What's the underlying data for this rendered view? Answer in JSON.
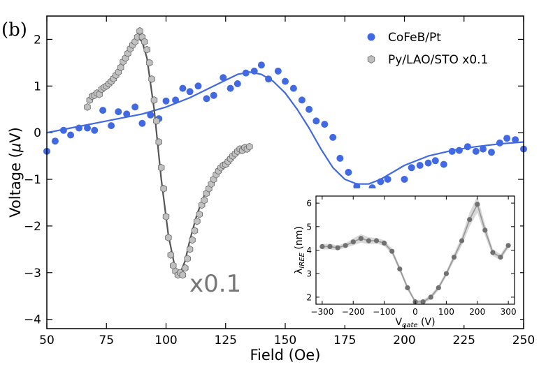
{
  "panel_label": "(b)",
  "chart_data": [
    {
      "type": "scatter",
      "title": "",
      "xlabel": "Field (Oe)",
      "ylabel": "Voltage (μV)",
      "ylabel_parts": {
        "pre": "Voltage (",
        "greek": "μ",
        "post": "V)"
      },
      "xlim": [
        50,
        250
      ],
      "ylim": [
        -4.2,
        2.5
      ],
      "xticks": [
        50,
        75,
        100,
        125,
        150,
        175,
        200,
        225,
        250
      ],
      "yticks": [
        -4,
        -3,
        -2,
        -1,
        0,
        1,
        2
      ],
      "ytick_labels": [
        "−4",
        "−3",
        "−2",
        "−1",
        "0",
        "1",
        "2"
      ],
      "grid": false,
      "legend_position": "top-right",
      "annotation": "x0.1",
      "series": [
        {
          "name": "CoFeB/Pt",
          "marker": "circle",
          "color": "#4169e1",
          "points": [
            [
              50,
              -0.4
            ],
            [
              53.5,
              -0.18
            ],
            [
              57,
              0.05
            ],
            [
              60,
              -0.05
            ],
            [
              63.5,
              0.1
            ],
            [
              67,
              0.1
            ],
            [
              70,
              0.05
            ],
            [
              73.5,
              0.48
            ],
            [
              77,
              0.15
            ],
            [
              80,
              0.45
            ],
            [
              83.5,
              0.4
            ],
            [
              87,
              0.55
            ],
            [
              90,
              0.2
            ],
            [
              93.5,
              0.38
            ],
            [
              97,
              0.3
            ],
            [
              100,
              0.68
            ],
            [
              104,
              0.7
            ],
            [
              107,
              0.95
            ],
            [
              110,
              0.88
            ],
            [
              113.5,
              1.0
            ],
            [
              117,
              0.73
            ],
            [
              120,
              0.8
            ],
            [
              124,
              1.18
            ],
            [
              127,
              0.95
            ],
            [
              130,
              1.05
            ],
            [
              133.5,
              1.28
            ],
            [
              137,
              1.32
            ],
            [
              140,
              1.45
            ],
            [
              143,
              1.15
            ],
            [
              147,
              1.32
            ],
            [
              150,
              1.1
            ],
            [
              153.5,
              0.95
            ],
            [
              157,
              0.7
            ],
            [
              160,
              0.5
            ],
            [
              163,
              0.25
            ],
            [
              166.5,
              0.18
            ],
            [
              170,
              -0.1
            ],
            [
              173,
              -0.55
            ],
            [
              176.5,
              -0.85
            ],
            [
              180,
              -1.15
            ],
            [
              183,
              -1.3
            ],
            [
              186.5,
              -1.18
            ],
            [
              190,
              -1.05
            ],
            [
              193,
              -1.0
            ],
            [
              196.5,
              -1.38
            ],
            [
              200,
              -1.0
            ],
            [
              203,
              -0.75
            ],
            [
              206.5,
              -0.7
            ],
            [
              210,
              -0.65
            ],
            [
              213,
              -0.6
            ],
            [
              216.5,
              -0.68
            ],
            [
              220,
              -0.4
            ],
            [
              223,
              -0.38
            ],
            [
              226.5,
              -0.3
            ],
            [
              230,
              -0.4
            ],
            [
              233,
              -0.35
            ],
            [
              236.5,
              -0.42
            ],
            [
              240,
              -0.22
            ],
            [
              243,
              -0.12
            ],
            [
              246.5,
              -0.15
            ],
            [
              250,
              -0.35
            ]
          ],
          "fit": [
            [
              50,
              0.0
            ],
            [
              60,
              0.1
            ],
            [
              70,
              0.2
            ],
            [
              80,
              0.3
            ],
            [
              90,
              0.4
            ],
            [
              100,
              0.55
            ],
            [
              110,
              0.75
            ],
            [
              120,
              1.0
            ],
            [
              130,
              1.25
            ],
            [
              135,
              1.3
            ],
            [
              140,
              1.25
            ],
            [
              145,
              1.1
            ],
            [
              150,
              0.85
            ],
            [
              155,
              0.5
            ],
            [
              160,
              0.1
            ],
            [
              165,
              -0.35
            ],
            [
              170,
              -0.75
            ],
            [
              175,
              -1.0
            ],
            [
              180,
              -1.1
            ],
            [
              185,
              -1.1
            ],
            [
              190,
              -1.0
            ],
            [
              195,
              -0.85
            ],
            [
              200,
              -0.7
            ],
            [
              210,
              -0.5
            ],
            [
              220,
              -0.38
            ],
            [
              230,
              -0.3
            ],
            [
              240,
              -0.24
            ],
            [
              250,
              -0.2
            ]
          ]
        },
        {
          "name": "Py/LAO/STO x0.1",
          "marker": "hexagon",
          "color": "#c0c0c0",
          "points": [
            [
              67,
              0.55
            ],
            [
              68,
              0.7
            ],
            [
              69,
              0.78
            ],
            [
              70,
              0.8
            ],
            [
              71,
              0.85
            ],
            [
              72,
              0.82
            ],
            [
              73,
              0.93
            ],
            [
              74,
              0.97
            ],
            [
              75,
              1.0
            ],
            [
              76,
              1.05
            ],
            [
              77,
              1.1
            ],
            [
              78,
              1.16
            ],
            [
              79,
              1.23
            ],
            [
              80,
              1.3
            ],
            [
              81,
              1.4
            ],
            [
              82,
              1.52
            ],
            [
              83,
              1.6
            ],
            [
              84,
              1.7
            ],
            [
              85,
              1.8
            ],
            [
              86,
              1.88
            ],
            [
              87,
              1.95
            ],
            [
              88,
              2.05
            ],
            [
              89,
              2.18
            ],
            [
              90,
              2.05
            ],
            [
              91,
              1.95
            ],
            [
              92,
              1.78
            ],
            [
              93,
              1.5
            ],
            [
              94,
              1.15
            ],
            [
              95,
              0.7
            ],
            [
              96,
              0.25
            ],
            [
              97,
              -0.2
            ],
            [
              98,
              -0.75
            ],
            [
              99,
              -1.2
            ],
            [
              100,
              -1.8
            ],
            [
              101,
              -2.25
            ],
            [
              102,
              -2.62
            ],
            [
              103,
              -2.85
            ],
            [
              104,
              -2.97
            ],
            [
              105,
              -3.05
            ],
            [
              106,
              -3.0
            ],
            [
              107,
              -3.05
            ],
            [
              108,
              -2.9
            ],
            [
              109,
              -2.7
            ],
            [
              110,
              -2.5
            ],
            [
              111,
              -2.3
            ],
            [
              112,
              -2.1
            ],
            [
              113,
              -1.9
            ],
            [
              114,
              -1.75
            ],
            [
              115,
              -1.55
            ],
            [
              116,
              -1.45
            ],
            [
              117,
              -1.3
            ],
            [
              118,
              -1.2
            ],
            [
              119,
              -1.1
            ],
            [
              120,
              -1.0
            ],
            [
              121,
              -0.9
            ],
            [
              122,
              -0.82
            ],
            [
              123,
              -0.75
            ],
            [
              124,
              -0.7
            ],
            [
              125,
              -0.68
            ],
            [
              126,
              -0.62
            ],
            [
              127,
              -0.56
            ],
            [
              128,
              -0.5
            ],
            [
              129,
              -0.45
            ],
            [
              130,
              -0.4
            ],
            [
              131,
              -0.35
            ],
            [
              132,
              -0.38
            ],
            [
              133,
              -0.32
            ],
            [
              134,
              -0.35
            ],
            [
              135,
              -0.3
            ]
          ],
          "fit": [
            [
              67,
              0.65
            ],
            [
              70,
              0.8
            ],
            [
              75,
              1.0
            ],
            [
              80,
              1.35
            ],
            [
              85,
              1.85
            ],
            [
              88,
              2.05
            ],
            [
              90,
              1.95
            ],
            [
              92,
              1.6
            ],
            [
              95,
              0.5
            ],
            [
              98,
              -1.0
            ],
            [
              101,
              -2.2
            ],
            [
              104,
              -2.95
            ],
            [
              106,
              -3.0
            ],
            [
              108,
              -2.75
            ],
            [
              110,
              -2.3
            ],
            [
              113,
              -1.75
            ],
            [
              116,
              -1.35
            ],
            [
              120,
              -0.95
            ],
            [
              125,
              -0.65
            ],
            [
              130,
              -0.45
            ],
            [
              135,
              -0.32
            ]
          ]
        }
      ]
    },
    {
      "type": "line",
      "title": "",
      "xlabel_parts": {
        "pre": "V",
        "sub": "gate",
        "post": " (V)"
      },
      "ylabel_parts": {
        "pre": "λ",
        "sub": "IREE",
        "post": " (nm)"
      },
      "xlim": [
        -320,
        320
      ],
      "ylim": [
        1.7,
        6.3
      ],
      "xticks": [
        -300,
        -200,
        -100,
        0,
        100,
        200,
        300
      ],
      "xtick_labels": [
        "−300",
        "−200",
        "−100",
        "0",
        "100",
        "200",
        "300"
      ],
      "yticks": [
        2,
        3,
        4,
        5,
        6
      ],
      "series": [
        {
          "name": "λ_IREE",
          "color": "#707070",
          "points": [
            [
              -300,
              4.15
            ],
            [
              -275,
              4.15
            ],
            [
              -250,
              4.1
            ],
            [
              -225,
              4.2
            ],
            [
              -200,
              4.35
            ],
            [
              -175,
              4.5
            ],
            [
              -150,
              4.4
            ],
            [
              -125,
              4.4
            ],
            [
              -100,
              4.3
            ],
            [
              -75,
              3.95
            ],
            [
              -50,
              3.2
            ],
            [
              -25,
              2.4
            ],
            [
              0,
              1.8
            ],
            [
              25,
              1.8
            ],
            [
              50,
              2.0
            ],
            [
              75,
              2.4
            ],
            [
              100,
              3.0
            ],
            [
              125,
              3.7
            ],
            [
              150,
              4.4
            ],
            [
              175,
              5.3
            ],
            [
              200,
              5.95
            ],
            [
              225,
              4.85
            ],
            [
              250,
              3.9
            ],
            [
              275,
              3.7
            ],
            [
              300,
              4.2
            ]
          ],
          "band": [
            0.12,
            0.12,
            0.1,
            0.1,
            0.15,
            0.18,
            0.15,
            0.12,
            0.12,
            0.12,
            0.12,
            0.1,
            0.08,
            0.08,
            0.1,
            0.1,
            0.12,
            0.15,
            0.2,
            0.3,
            0.35,
            0.25,
            0.15,
            0.12,
            0.12
          ]
        }
      ]
    }
  ]
}
